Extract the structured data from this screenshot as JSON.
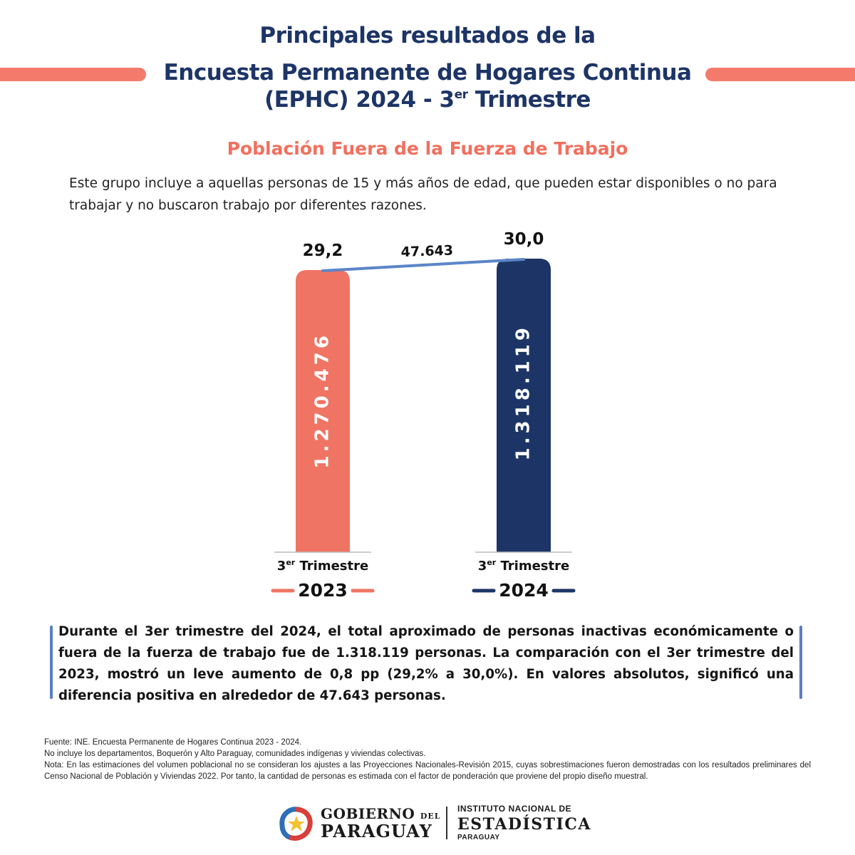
{
  "header": {
    "line1": "Principales resultados de la",
    "line2": "Encuesta Permanente de Hogares Continua",
    "line3_main": "(EPHC) 2024 - 3",
    "line3_sup": "er",
    "line3_end": " Trimestre"
  },
  "section_title": "Población Fuera de la Fuerza de Trabajo",
  "intro": "Este grupo incluye a aquellas personas de 15 y más años de edad, que pueden estar disponibles o no para trabajar y no buscaron trabajo por diferentes razones.",
  "chart_data": {
    "type": "bar",
    "categories": [
      "2023",
      "2024"
    ],
    "category_prefix": "3",
    "category_sup": "er",
    "category_suffix": " Trimestre",
    "percent_values": [
      "29,2",
      "30,0"
    ],
    "percent_numeric": [
      29.2,
      30.0
    ],
    "population_values": [
      "1.270.476",
      "1.318.119"
    ],
    "population_numeric": [
      1270476,
      1318119
    ],
    "difference_label": "47.643",
    "difference_numeric": 47643,
    "colors": [
      "#f07463",
      "#1d3566"
    ],
    "line_color": "#5b85c8"
  },
  "summary": "Durante el 3er trimestre del 2024, el total aproximado de personas inactivas económicamente o fuera de la fuerza de trabajo fue de 1.318.119 personas. La comparación con el 3er trimestre del 2023, mostró un leve aumento de 0,8 pp (29,2% a 30,0%). En valores absolutos, significó una diferencia positiva en alrededor de 47.643 personas.",
  "footnotes": [
    "Fuente: INE. Encuesta Permanente de Hogares Continua 2023 - 2024.",
    "No incluye los departamentos, Boquerón y Alto Paraguay, comunidades indígenas y viviendas colectivas.",
    "Nota: En las estimaciones del volumen poblacional no se consideran los ajustes a las Proyecciones Nacionales-Revisión 2015, cuyas sobrestimaciones fueron demostradas con los resultados preliminares del Censo Nacional de Población y Viviendas 2022. Por tanto, la cantidad de personas es estimada con el factor de ponderación que proviene del propio diseño muestral."
  ],
  "logos": {
    "gobierno_word": "GOBIERNO",
    "gobierno_del": "DEL",
    "gobierno_country": "PARAGUAY",
    "ine_line1": "INSTITUTO NACIONAL DE",
    "ine_line2": "ESTADÍSTICA",
    "ine_line3": "PARAGUAY"
  }
}
